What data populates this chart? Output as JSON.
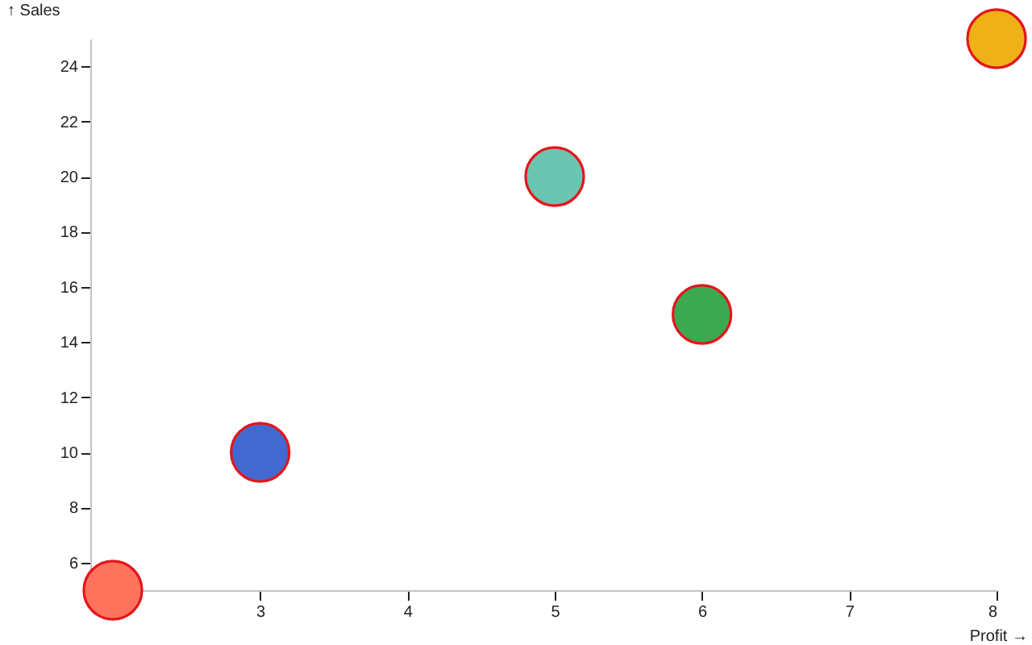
{
  "chart_data": {
    "type": "scatter",
    "xlabel": "Profit →",
    "ylabel": "↑ Sales",
    "x": [
      2,
      3,
      5,
      6,
      8
    ],
    "values": [
      5,
      10,
      20,
      15,
      25
    ],
    "colors": [
      "#ff725c",
      "#4269d0",
      "#6cc5b0",
      "#3ca951",
      "#efb118"
    ],
    "xlim": [
      2,
      8
    ],
    "xticks": [
      3,
      4,
      5,
      6,
      7,
      8
    ],
    "ylim": [
      5,
      25
    ],
    "yticks": [
      6,
      8,
      10,
      12,
      14,
      16,
      18,
      20,
      22,
      24
    ],
    "marker": "circle"
  }
}
